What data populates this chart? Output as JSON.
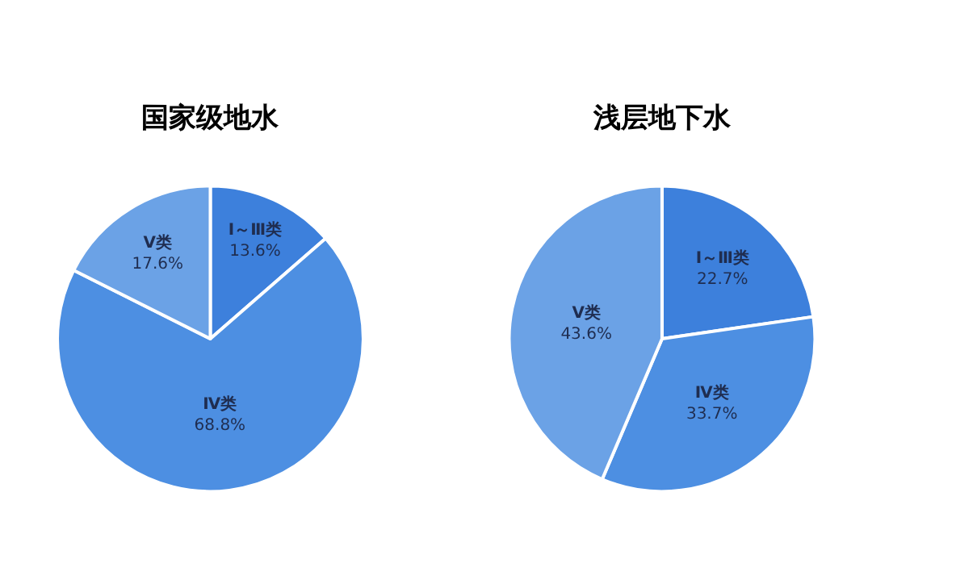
{
  "chart_data": [
    {
      "type": "pie",
      "title": "国家级地水",
      "categories": [
        "Ⅰ～Ⅲ类",
        "Ⅳ类",
        "Ⅴ类"
      ],
      "values": [
        13.6,
        68.8,
        17.6
      ],
      "value_labels": [
        "13.6%",
        "68.8%",
        "17.6%"
      ],
      "colors": [
        "#3d80dc",
        "#4d8fe2",
        "#6ba2e6"
      ],
      "legend": false
    },
    {
      "type": "pie",
      "title": "浅层地下水",
      "categories": [
        "Ⅰ～Ⅲ类",
        "Ⅳ类",
        "Ⅴ类"
      ],
      "values": [
        22.7,
        33.7,
        43.6
      ],
      "value_labels": [
        "22.7%",
        "33.7%",
        "43.6%"
      ],
      "colors": [
        "#3d80dc",
        "#4d8fe2",
        "#6ba2e6"
      ],
      "legend": false
    }
  ]
}
